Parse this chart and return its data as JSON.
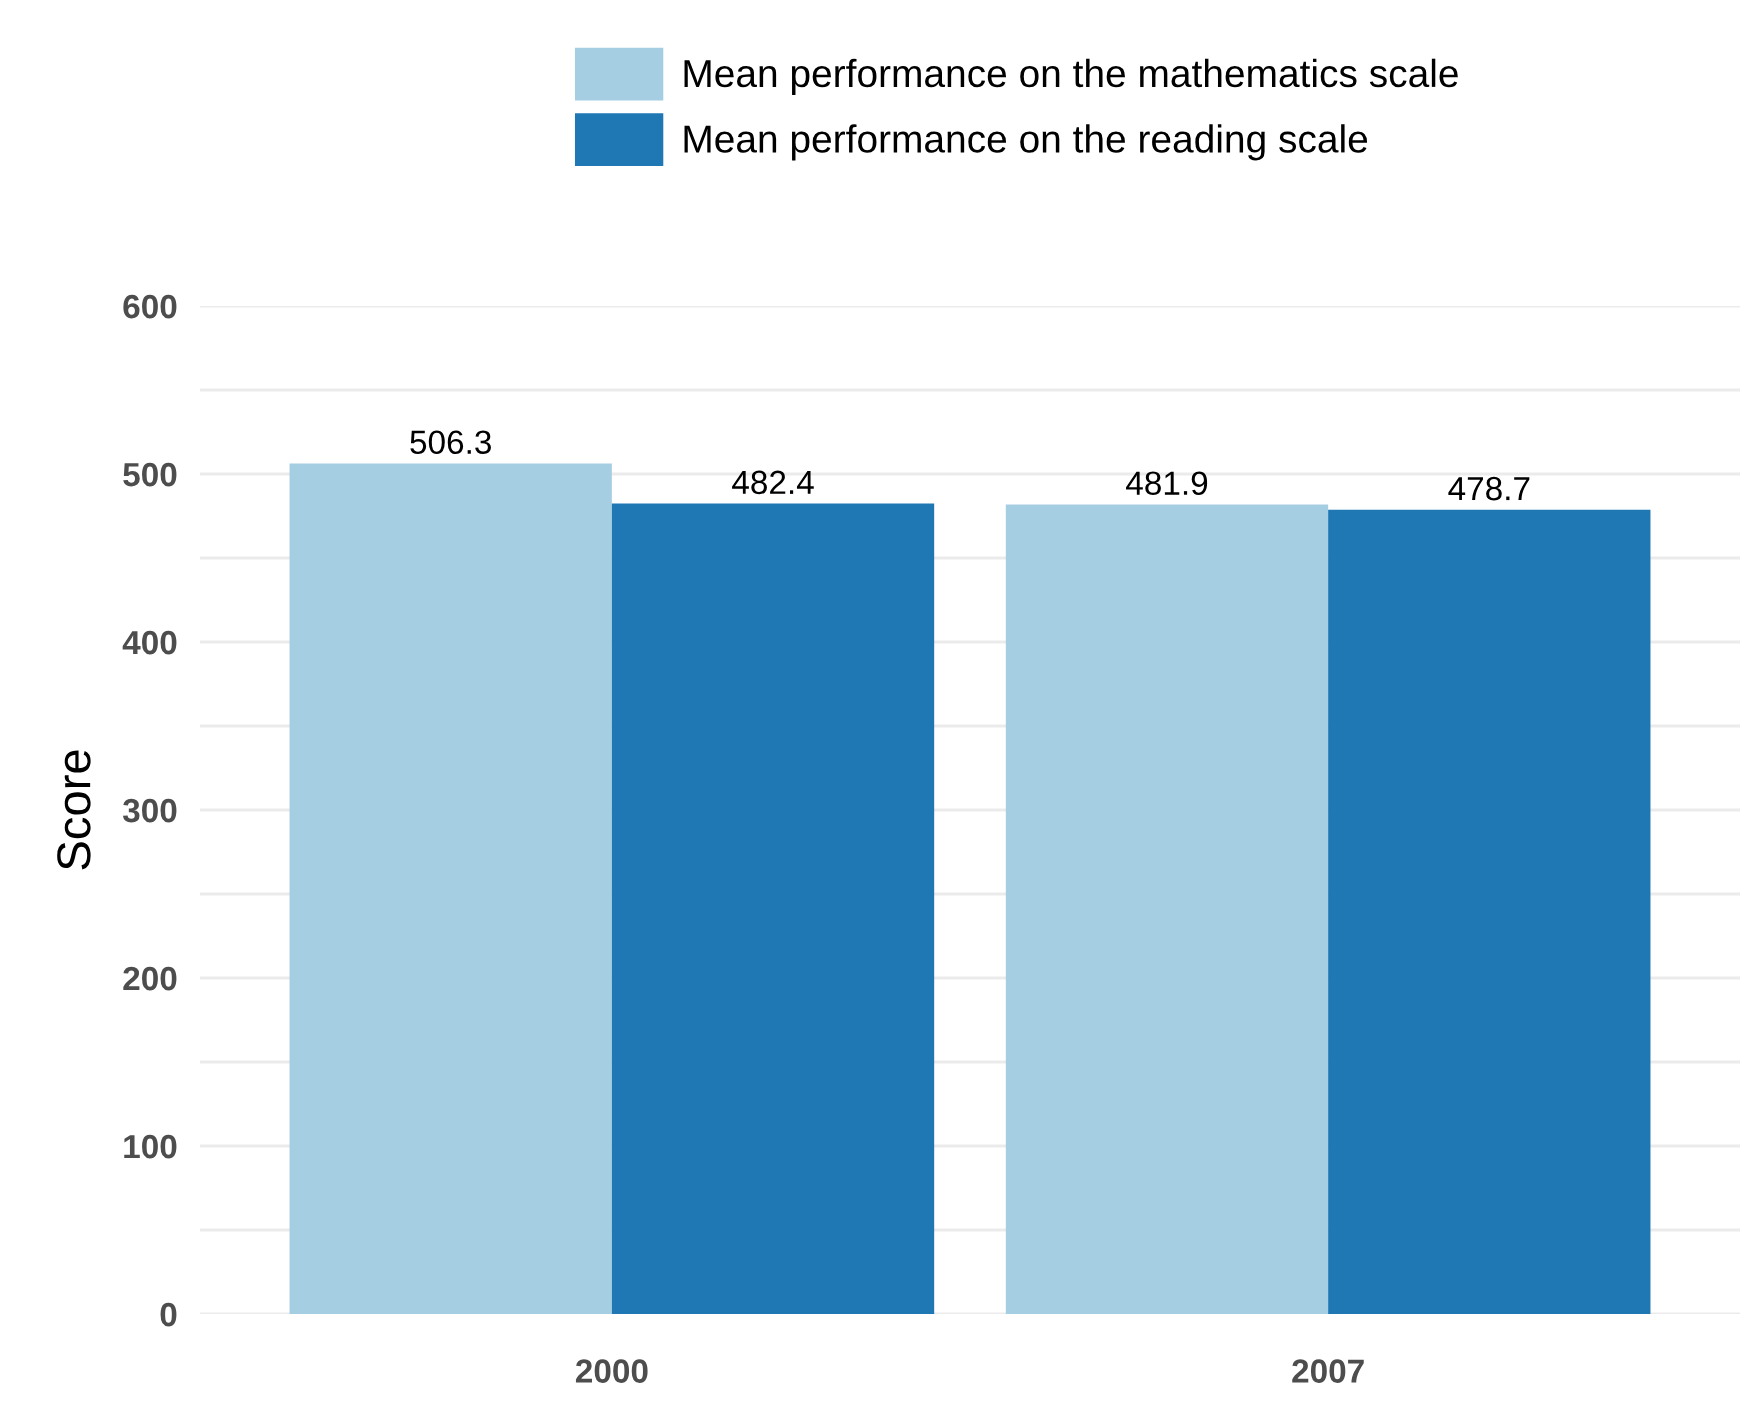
{
  "chart_data": {
    "type": "bar",
    "ylabel": "Score",
    "categories": [
      "2000",
      "2007"
    ],
    "series": [
      {
        "name": "Mean performance on the mathematics scale",
        "color": "#a6cee3",
        "values": [
          506.3,
          481.9
        ]
      },
      {
        "name": "Mean performance on the reading scale",
        "color": "#1f78b4",
        "values": [
          482.4,
          478.7
        ]
      }
    ],
    "ylim": [
      0,
      600
    ],
    "yticks": [
      0,
      {
        "value": 50,
        "label": null
      },
      100,
      {
        "value": 150,
        "label": null
      },
      200,
      {
        "value": 250,
        "label": null
      },
      300,
      {
        "value": 350,
        "label": null
      },
      400,
      {
        "value": 450,
        "label": null
      },
      500,
      {
        "value": 550,
        "label": null
      },
      600
    ],
    "grid": "y",
    "legend": "top",
    "data_labels": true
  }
}
